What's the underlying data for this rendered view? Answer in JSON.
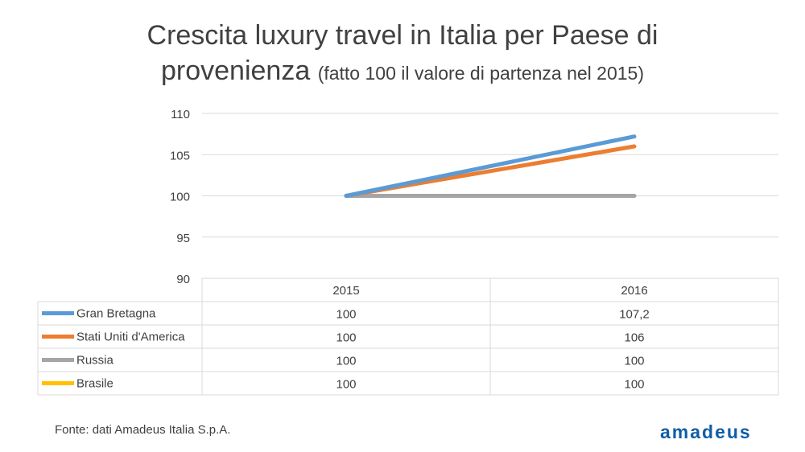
{
  "title": {
    "main_line1": "Crescita luxury travel in Italia per Paese di",
    "main_line2": "provenienza",
    "subtitle": "(fatto 100 il valore di partenza nel 2015)"
  },
  "source": "Fonte: dati Amadeus Italia S.p.A.",
  "logo": "amadeus",
  "chart_data": {
    "type": "line",
    "title": "Crescita luxury travel in Italia per Paese di provenienza",
    "subtitle": "(fatto 100 il valore di partenza nel 2015)",
    "categories": [
      "2015",
      "2016"
    ],
    "ylim": [
      90,
      110
    ],
    "yticks": [
      90,
      95,
      100,
      105,
      110
    ],
    "grid": true,
    "legend": "data-table",
    "series": [
      {
        "name": "Gran Bretagna",
        "values": [
          100,
          107.2
        ],
        "labels": [
          "100",
          "107,2"
        ],
        "color": "#5b9bd5"
      },
      {
        "name": "Stati Uniti d'America",
        "values": [
          100,
          106
        ],
        "labels": [
          "100",
          "106"
        ],
        "color": "#ed7d31"
      },
      {
        "name": "Russia",
        "values": [
          100,
          100
        ],
        "labels": [
          "100",
          "100"
        ],
        "color": "#a5a5a5"
      },
      {
        "name": "Brasile",
        "values": [
          100,
          100
        ],
        "labels": [
          "100",
          "100"
        ],
        "color": "#ffc000"
      }
    ]
  }
}
